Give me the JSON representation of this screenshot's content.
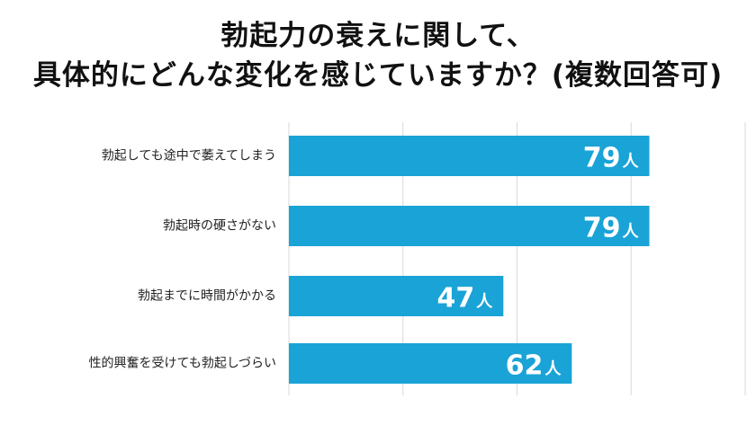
{
  "chart_data": {
    "type": "bar",
    "orientation": "horizontal",
    "title_lines": [
      "勃起力の衰えに関して、",
      "具体的にどんな変化を感じていますか？(複数回答可)"
    ],
    "categories": [
      "勃起しても途中で萎えてしまう",
      "勃起時の硬さがない",
      "勃起までに時間がかかる",
      "性的興奮を受けても勃起しづらい"
    ],
    "values": [
      79,
      79,
      47,
      62
    ],
    "unit": "人",
    "xlim": [
      0,
      100
    ],
    "grid": true,
    "bar_color": "#1aa3d6"
  }
}
